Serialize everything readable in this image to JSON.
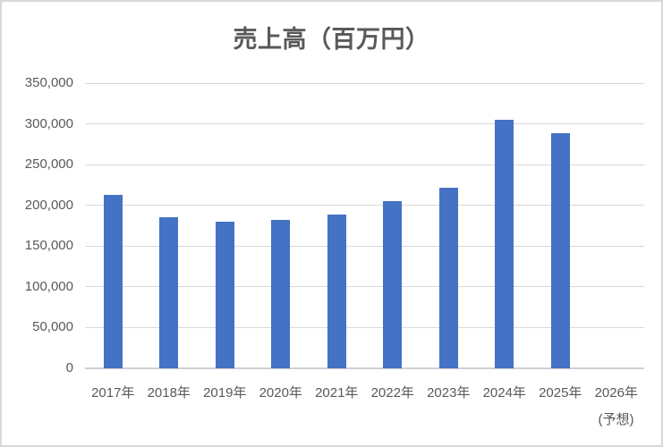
{
  "chart_data": {
    "type": "bar",
    "title": "売上高（百万円）",
    "categories": [
      "2017年",
      "2018年",
      "2019年",
      "2020年",
      "2021年",
      "2022年",
      "2023年",
      "2024年",
      "2025年",
      "2026年"
    ],
    "values": [
      213000,
      185000,
      180000,
      182000,
      189000,
      205000,
      222000,
      305000,
      289000,
      null
    ],
    "last_category_note": "(予想)",
    "xlabel": "",
    "ylabel": "",
    "ylim": [
      0,
      350000
    ],
    "ytick_step": 50000,
    "ytick_labels": [
      "0",
      "50,000",
      "100,000",
      "150,000",
      "200,000",
      "250,000",
      "300,000",
      "350,000"
    ],
    "grid": true,
    "legend": "none",
    "styles": {
      "bar_color": "#4472C4",
      "gridline_color": "#D9D9D9",
      "axis_line_color": "#D0D0D0",
      "label_color": "#595959",
      "title_color": "#595959",
      "border_color": "#D8D8D8",
      "background": "#FFFFFF"
    }
  }
}
